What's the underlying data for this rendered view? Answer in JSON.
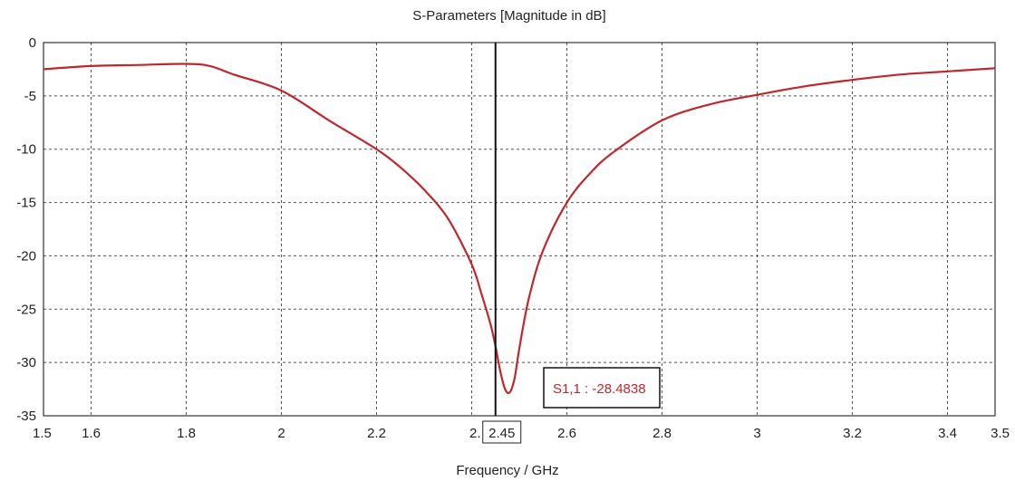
{
  "chart_data": {
    "type": "line",
    "title": "S-Parameters [Magnitude in dB]",
    "xlabel": "Frequency / GHz",
    "ylabel": "",
    "xlim": [
      1.5,
      3.5
    ],
    "ylim": [
      -35,
      0
    ],
    "x_ticks": [
      1.5,
      1.6,
      1.8,
      2,
      2.2,
      2.4,
      2.6,
      2.8,
      3,
      3.2,
      3.4,
      3.5
    ],
    "x_tick_labels": [
      "1.5",
      "1.6",
      "1.8",
      "2",
      "2.2",
      "2.",
      "2.6",
      "2.8",
      "3",
      "3.2",
      "3.4",
      "3.5"
    ],
    "y_ticks": [
      0,
      -5,
      -10,
      -15,
      -20,
      -25,
      -30,
      -35
    ],
    "y_tick_labels": [
      "0",
      "-5",
      "-10",
      "-15",
      "-20",
      "-25",
      "-30",
      "-35"
    ],
    "grid": true,
    "series": [
      {
        "name": "S1,1",
        "color": "#c0272d",
        "x": [
          1.5,
          1.6,
          1.7,
          1.8,
          1.85,
          1.9,
          2.0,
          2.1,
          2.2,
          2.25,
          2.3,
          2.35,
          2.4,
          2.42,
          2.44,
          2.45,
          2.46,
          2.47,
          2.48,
          2.49,
          2.5,
          2.52,
          2.55,
          2.6,
          2.65,
          2.7,
          2.8,
          2.9,
          3.0,
          3.1,
          3.2,
          3.3,
          3.4,
          3.5
        ],
        "y": [
          -2.5,
          -2.2,
          -2.1,
          -2.0,
          -2.2,
          -3.0,
          -4.5,
          -7.3,
          -10.0,
          -11.7,
          -13.8,
          -16.5,
          -20.8,
          -23.5,
          -26.5,
          -28.5,
          -30.8,
          -32.5,
          -32.8,
          -31.5,
          -28.7,
          -24.0,
          -19.5,
          -15.0,
          -12.2,
          -10.2,
          -7.3,
          -5.8,
          -4.9,
          -4.1,
          -3.5,
          -3.0,
          -2.7,
          -2.4
        ]
      }
    ],
    "marker": {
      "x": 2.45,
      "x_label": "2.45",
      "label": "S1,1 : -28.4838"
    }
  }
}
